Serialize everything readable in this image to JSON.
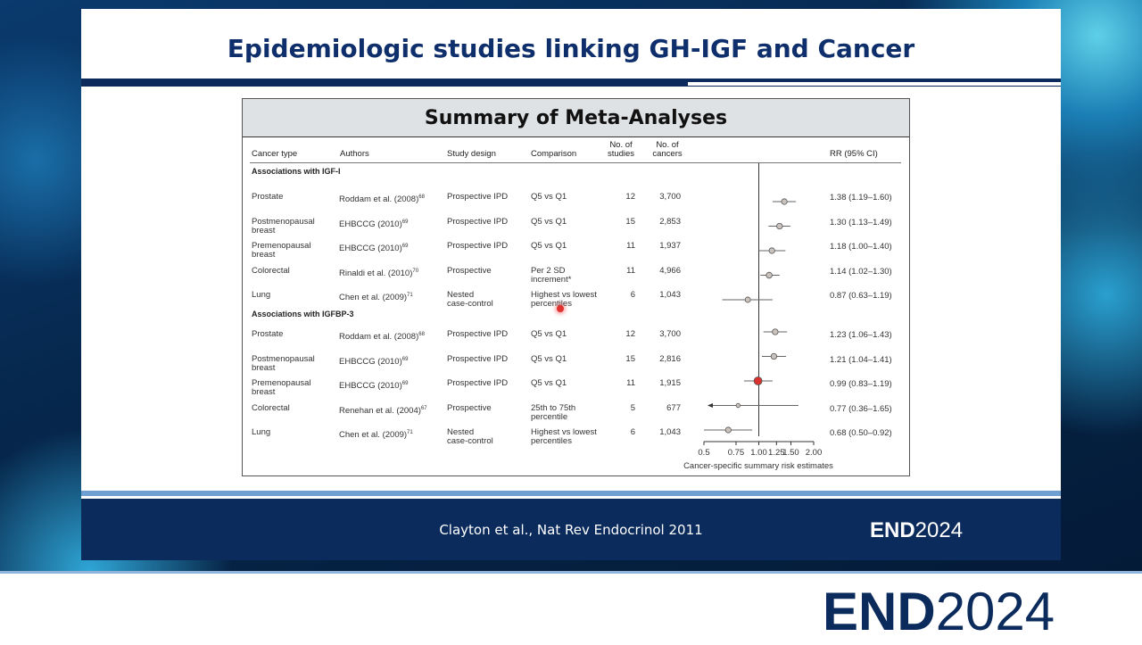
{
  "slide": {
    "title": "Epidemiologic studies linking GH-IGF and Cancer",
    "figure_title": "Summary of Meta-Analyses",
    "citation": "Clayton et al., Nat Rev Endocrinol 2011"
  },
  "brand": {
    "part1": "END",
    "part2": "2024",
    "color": "#0a2b5c"
  },
  "table": {
    "headers": {
      "cancer_type": "Cancer type",
      "authors": "Authors",
      "study_design": "Study design",
      "comparison": "Comparison",
      "no_studies_1": "No. of",
      "no_studies_2": "studies",
      "no_cancers_1": "No. of",
      "no_cancers_2": "cancers",
      "rr": "RR (95% CI)"
    },
    "section_igf1": "Associations with IGF-I",
    "section_igfbp3": "Associations with IGFBP-3",
    "rows_igf1": [
      {
        "type1": "Prostate",
        "type2": "",
        "author": "Roddam et al. (2008)",
        "ref": "68",
        "design1": "Prospective IPD",
        "design2": "",
        "comp1": "Q5 vs Q1",
        "comp2": "",
        "studies": "12",
        "cancers": "3,700",
        "rr": "1.38 (1.19–1.60)"
      },
      {
        "type1": "Postmenopausal",
        "type2": "breast",
        "author": "EHBCCG (2010)",
        "ref": "69",
        "design1": "Prospective IPD",
        "design2": "",
        "comp1": "Q5 vs Q1",
        "comp2": "",
        "studies": "15",
        "cancers": "2,853",
        "rr": "1.30 (1.13–1.49)"
      },
      {
        "type1": "Premenopausal",
        "type2": "breast",
        "author": "EHBCCG (2010)",
        "ref": "69",
        "design1": "Prospective IPD",
        "design2": "",
        "comp1": "Q5 vs Q1",
        "comp2": "",
        "studies": "11",
        "cancers": "1,937",
        "rr": "1.18 (1.00–1.40)"
      },
      {
        "type1": "Colorectal",
        "type2": "",
        "author": "Rinaldi et al. (2010)",
        "ref": "70",
        "design1": "Prospective",
        "design2": "",
        "comp1": "Per 2 SD",
        "comp2": "increment*",
        "studies": "11",
        "cancers": "4,966",
        "rr": "1.14 (1.02–1.30)"
      },
      {
        "type1": "Lung",
        "type2": "",
        "author": "Chen et al. (2009)",
        "ref": "71",
        "design1": "Nested",
        "design2": "case-control",
        "comp1": "Highest vs lowest",
        "comp2": "percentiles",
        "studies": "6",
        "cancers": "1,043",
        "rr": "0.87 (0.63–1.19)"
      }
    ],
    "rows_igfbp3": [
      {
        "type1": "Prostate",
        "type2": "",
        "author": "Roddam et al. (2008)",
        "ref": "68",
        "design1": "Prospective IPD",
        "design2": "",
        "comp1": "Q5 vs Q1",
        "comp2": "",
        "studies": "12",
        "cancers": "3,700",
        "rr": "1.23 (1.06–1.43)"
      },
      {
        "type1": "Postmenopausal",
        "type2": "breast",
        "author": "EHBCCG (2010)",
        "ref": "69",
        "design1": "Prospective IPD",
        "design2": "",
        "comp1": "Q5 vs Q1",
        "comp2": "",
        "studies": "15",
        "cancers": "2,816",
        "rr": "1.21 (1.04–1.41)"
      },
      {
        "type1": "Premenopausal",
        "type2": "breast",
        "author": "EHBCCG (2010)",
        "ref": "69",
        "design1": "Prospective IPD",
        "design2": "",
        "comp1": "Q5 vs Q1",
        "comp2": "",
        "studies": "11",
        "cancers": "1,915",
        "rr": "0.99 (0.83–1.19)"
      },
      {
        "type1": "Colorectal",
        "type2": "",
        "author": "Renehan et al. (2004)",
        "ref": "67",
        "design1": "Prospective",
        "design2": "",
        "comp1": "25th to 75th",
        "comp2": "percentile",
        "studies": "5",
        "cancers": "677",
        "rr": "0.77 (0.36–1.65)"
      },
      {
        "type1": "Lung",
        "type2": "",
        "author": "Chen et al. (2009)",
        "ref": "71",
        "design1": "Nested",
        "design2": "case-control",
        "comp1": "Highest vs lowest",
        "comp2": "percentiles",
        "studies": "6",
        "cancers": "1,043",
        "rr": "0.68 (0.50–0.92)"
      }
    ]
  },
  "chart_data": {
    "type": "scatter",
    "xlabel": "Cancer-specific summary risk estimates",
    "x_ticks": [
      "0.5",
      "0.75",
      "1.00",
      "1.25",
      "1.50",
      "2.00"
    ],
    "x_tick_values": [
      0.5,
      0.75,
      1.0,
      1.25,
      1.5,
      2.0
    ],
    "reference_line": 1.0,
    "point_color": "#c9c2bd",
    "highlight_color": "#d9322e",
    "series": [
      {
        "values": [
          {
            "est": 1.38,
            "lo": 1.19,
            "hi": 1.6
          },
          {
            "est": 1.3,
            "lo": 1.13,
            "hi": 1.49
          },
          {
            "est": 1.18,
            "lo": 1.0,
            "hi": 1.4
          },
          {
            "est": 1.14,
            "lo": 1.02,
            "hi": 1.3
          },
          {
            "est": 0.87,
            "lo": 0.63,
            "hi": 1.19
          }
        ]
      },
      {
        "values": [
          {
            "est": 1.23,
            "lo": 1.06,
            "hi": 1.43
          },
          {
            "est": 1.21,
            "lo": 1.04,
            "hi": 1.41
          },
          {
            "est": 0.99,
            "lo": 0.83,
            "hi": 1.19
          },
          {
            "est": 0.77,
            "lo": 0.36,
            "hi": 1.65
          },
          {
            "est": 0.68,
            "lo": 0.5,
            "hi": 0.92
          }
        ]
      }
    ]
  }
}
